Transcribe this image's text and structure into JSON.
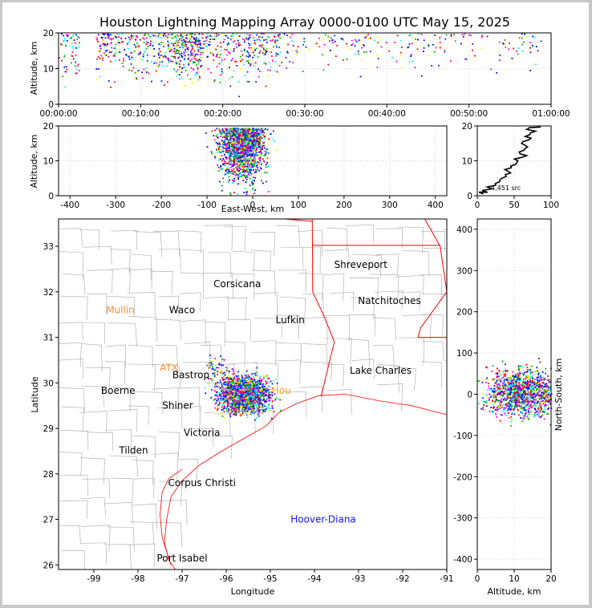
{
  "chart_data": [
    {
      "id": "alt_time",
      "type": "scatter",
      "title": "Houston Lightning Mapping Array 0000-0100 UTC May 15, 2025",
      "xlabel": "",
      "ylabel": "Altitude, km",
      "x_tick_labels": [
        "00:00:00",
        "00:10:00",
        "00:20:00",
        "00:30:00",
        "00:40:00",
        "00:50:00",
        "01:00:00"
      ],
      "xlim_minutes": [
        0,
        60
      ],
      "ylim": [
        0,
        20
      ],
      "y_ticks": [
        0,
        10,
        20
      ],
      "activity_windows_minutes": [
        [
          0,
          2.5
        ],
        [
          4.5,
          17.5
        ],
        [
          14,
          27
        ],
        [
          27,
          44
        ],
        [
          44,
          59
        ]
      ]
    },
    {
      "id": "alt_ew",
      "type": "scatter",
      "xlabel": "East-West, km",
      "ylabel": "Altitude, km",
      "xlim": [
        -425,
        425
      ],
      "x_ticks": [
        -400,
        -300,
        -200,
        -100,
        0,
        100,
        200,
        300,
        400
      ],
      "ylim": [
        0,
        20
      ],
      "y_ticks": [
        0,
        10,
        20
      ],
      "cluster_center_km": -25
    },
    {
      "id": "histogram",
      "type": "line",
      "annotation": "4,451 src",
      "xlim": [
        0,
        100
      ],
      "x_ticks": [
        0,
        50,
        100
      ],
      "ylim": [
        0,
        20
      ],
      "y_ticks": [
        0,
        10,
        20
      ],
      "profile_altitude_km": [
        0.5,
        1,
        2,
        3,
        4,
        5,
        6,
        7,
        8,
        9,
        10,
        11,
        12,
        13,
        14,
        15,
        16,
        17,
        18,
        19,
        19.7
      ],
      "profile_count": [
        8,
        14,
        20,
        25,
        30,
        33,
        38,
        42,
        46,
        52,
        55,
        60,
        58,
        63,
        68,
        60,
        70,
        65,
        72,
        67,
        86
      ]
    },
    {
      "id": "plan_view",
      "type": "scatter",
      "xlabel": "Longitude",
      "ylabel": "Latitude",
      "xlim": [
        -99.8,
        -91
      ],
      "ylim": [
        25.9,
        33.6
      ],
      "x_ticks": [
        -99,
        -98,
        -97,
        -96,
        -95,
        -94,
        -93,
        -92,
        -91
      ],
      "y_ticks": [
        26,
        27,
        28,
        29,
        30,
        31,
        32,
        33
      ],
      "cluster_center": [
        -95.6,
        29.75
      ],
      "places": [
        {
          "name": "Shreveport",
          "lon": -92.95,
          "lat": 32.6,
          "color": "#000000"
        },
        {
          "name": "Corsicana",
          "lon": -95.75,
          "lat": 32.17,
          "color": "#000000"
        },
        {
          "name": "Natchitoches",
          "lon": -92.3,
          "lat": 31.8,
          "color": "#000000"
        },
        {
          "name": "Mullin",
          "lon": -98.4,
          "lat": 31.6,
          "color": "#ff8c3c"
        },
        {
          "name": "Waco",
          "lon": -97.0,
          "lat": 31.6,
          "color": "#000000"
        },
        {
          "name": "Lufkin",
          "lon": -94.55,
          "lat": 31.38,
          "color": "#000000"
        },
        {
          "name": "ATX",
          "lon": -97.3,
          "lat": 30.33,
          "color": "#ff8c3c"
        },
        {
          "name": "Bastrop",
          "lon": -96.8,
          "lat": 30.17,
          "color": "#000000"
        },
        {
          "name": "Lake Charles",
          "lon": -92.5,
          "lat": 30.27,
          "color": "#000000"
        },
        {
          "name": "Boerne",
          "lon": -98.45,
          "lat": 29.83,
          "color": "#000000"
        },
        {
          "name": "Hou",
          "lon": -94.75,
          "lat": 29.83,
          "color": "#ffa020"
        },
        {
          "name": "Shiner",
          "lon": -97.1,
          "lat": 29.5,
          "color": "#000000"
        },
        {
          "name": "Victoria",
          "lon": -96.55,
          "lat": 28.9,
          "color": "#000000"
        },
        {
          "name": "Tilden",
          "lon": -98.1,
          "lat": 28.52,
          "color": "#000000"
        },
        {
          "name": "Corpus Christi",
          "lon": -96.55,
          "lat": 27.8,
          "color": "#000000"
        },
        {
          "name": "Hoover-Diana",
          "lon": -93.8,
          "lat": 27.0,
          "color": "#1414ff"
        },
        {
          "name": "Port Isabel",
          "lon": -97.0,
          "lat": 26.15,
          "color": "#000000"
        }
      ]
    },
    {
      "id": "ns_alt",
      "type": "scatter",
      "xlabel": "Altitude, km",
      "ylabel": "North-South, km",
      "xlim": [
        0,
        20
      ],
      "x_ticks": [
        0,
        10,
        20
      ],
      "ylim": [
        -425,
        425
      ],
      "y_ticks": [
        -400,
        -300,
        -200,
        -100,
        0,
        100,
        200,
        300,
        400
      ],
      "cluster_center_km": 5
    }
  ],
  "colors": {
    "source_palette": [
      "#0000ff",
      "#1414ff",
      "#00b400",
      "#00ffff",
      "#ffff00",
      "#ff0000",
      "#ff00ff",
      "#000000"
    ],
    "state_border": "#ff0000",
    "county_line": "#a8a8a8",
    "coastline": "#ff0000"
  }
}
